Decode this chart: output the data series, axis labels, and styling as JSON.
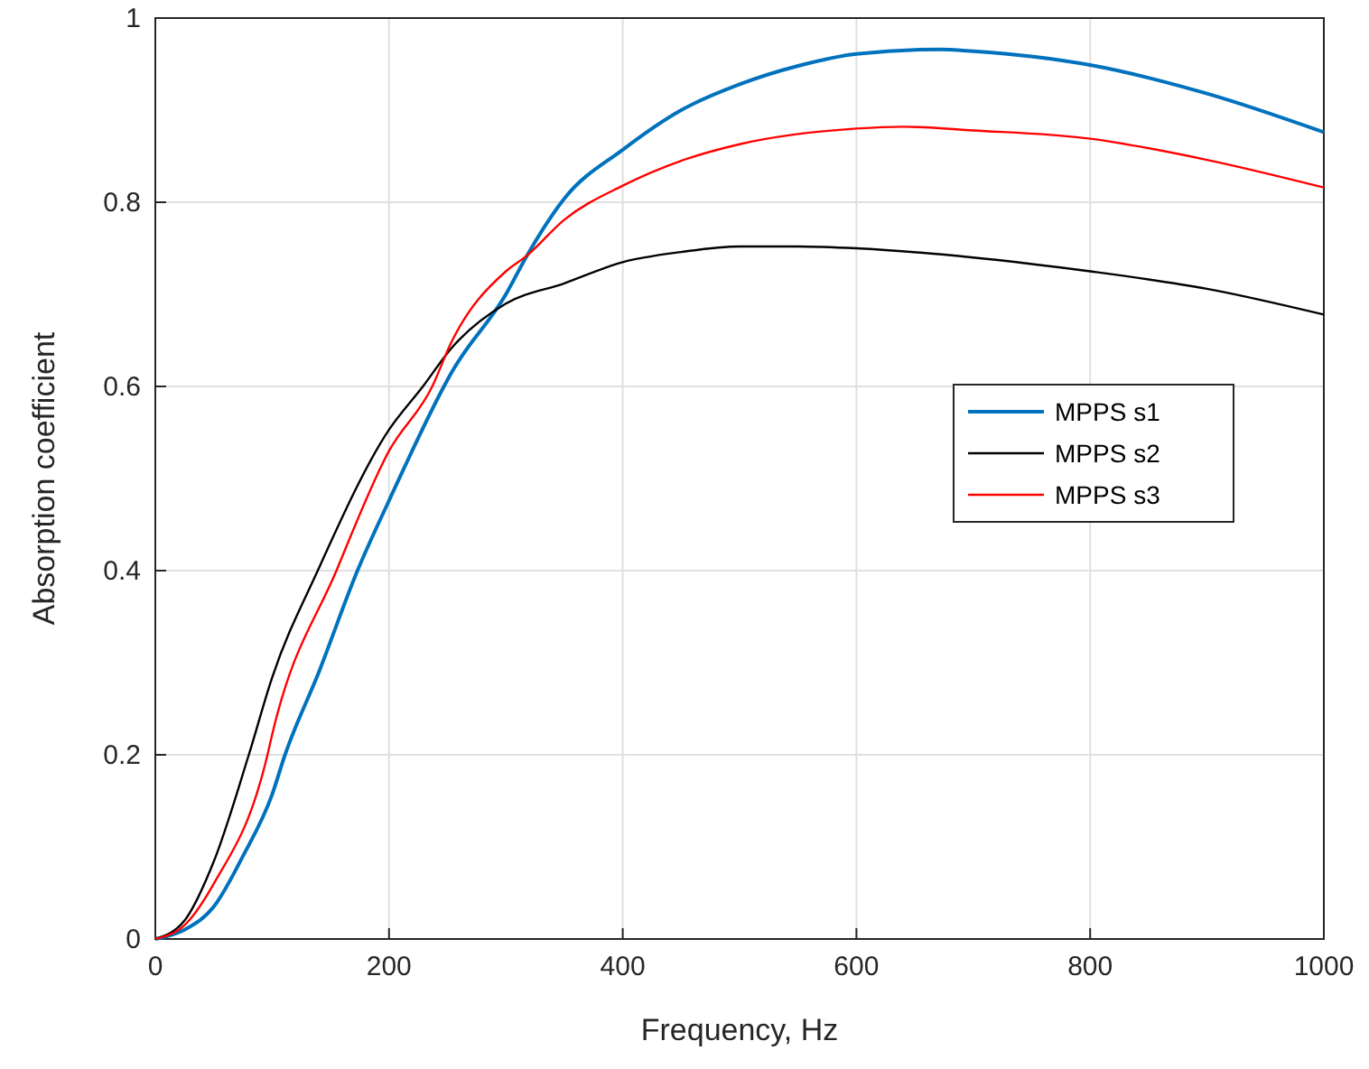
{
  "chart_data": {
    "type": "line",
    "xlabel": "Frequency, Hz",
    "ylabel": "Absorption coefficient",
    "xlim": [
      0,
      1000
    ],
    "ylim": [
      0,
      1
    ],
    "xticks": [
      0,
      200,
      400,
      600,
      800,
      1000
    ],
    "yticks": [
      0,
      0.2,
      0.4,
      0.6,
      0.8,
      1
    ],
    "grid": true,
    "legend": "right",
    "marker": "none",
    "line_style": "solid",
    "series": [
      {
        "name": "MPPS s1",
        "color": "#0072bd",
        "x": [
          0,
          25,
          50,
          75,
          100,
          111,
          140,
          173,
          200,
          247,
          253,
          300,
          318,
          350,
          400,
          450,
          500,
          550,
          600,
          671,
          700,
          800,
          900,
          1000
        ],
        "values": [
          0,
          0.01,
          0.035,
          0.09,
          0.157,
          0.2,
          0.29,
          0.4,
          0.476,
          0.6,
          0.614,
          0.7,
          0.742,
          0.804,
          0.857,
          0.9,
          0.928,
          0.948,
          0.961,
          0.966,
          0.964,
          0.949,
          0.918,
          0.876
        ]
      },
      {
        "name": "MPPS s2",
        "color": "#000000",
        "x": [
          0,
          25,
          50,
          80,
          100,
          139,
          200,
          229,
          253,
          300,
          350,
          400,
          450,
          500,
          550,
          600,
          700,
          800,
          900,
          1000
        ],
        "values": [
          0,
          0.02,
          0.084,
          0.2,
          0.284,
          0.4,
          0.553,
          0.6,
          0.641,
          0.69,
          0.712,
          0.735,
          0.746,
          0.752,
          0.752,
          0.75,
          0.74,
          0.725,
          0.706,
          0.678
        ]
      },
      {
        "name": "MPPS s3",
        "color": "#ff0000",
        "x": [
          0,
          25,
          50,
          96,
          100,
          155,
          200,
          237,
          253,
          300,
          318,
          350,
          400,
          450,
          500,
          600,
          640,
          700,
          800,
          900,
          1000
        ],
        "values": [
          0,
          0.015,
          0.06,
          0.2,
          0.222,
          0.4,
          0.53,
          0.6,
          0.647,
          0.725,
          0.742,
          0.781,
          0.818,
          0.845,
          0.863,
          0.88,
          0.882,
          0.878,
          0.869,
          0.846,
          0.816
        ]
      }
    ]
  }
}
